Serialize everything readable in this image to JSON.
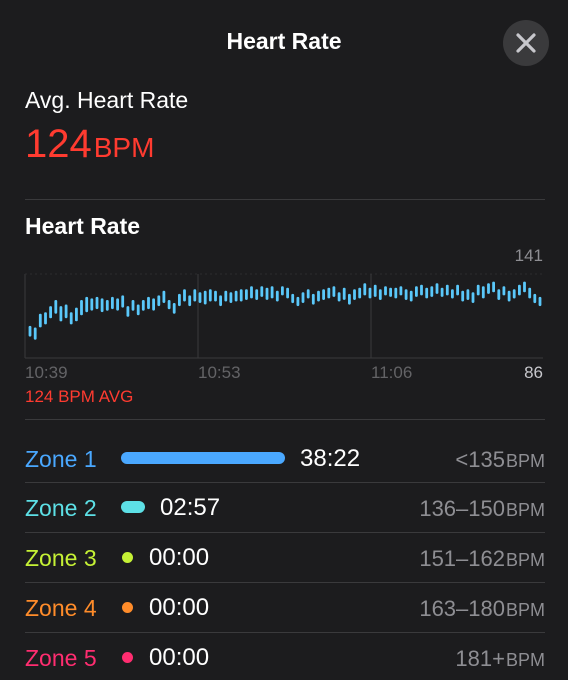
{
  "header": {
    "title": "Heart Rate"
  },
  "summary": {
    "avg_label": "Avg. Heart Rate",
    "avg_value": "124",
    "avg_unit": "BPM"
  },
  "chart_section": {
    "title": "Heart Rate",
    "avg_caption": "124 BPM AVG",
    "y_max_label": "141",
    "y_min_label": "86",
    "x_labels": [
      "10:39",
      "10:53",
      "11:06"
    ]
  },
  "chart_data": {
    "type": "bar",
    "title": "Heart Rate",
    "xlabel": "",
    "ylabel": "",
    "x_ticks": [
      "10:39",
      "10:53",
      "11:06"
    ],
    "ylim": [
      86,
      141
    ],
    "grid": true,
    "color": "#5ac8fa",
    "values": [
      [
        100,
        107
      ],
      [
        98,
        106
      ],
      [
        106,
        115
      ],
      [
        108,
        116
      ],
      [
        112,
        120
      ],
      [
        115,
        124
      ],
      [
        110,
        120
      ],
      [
        112,
        121
      ],
      [
        108,
        116
      ],
      [
        110,
        119
      ],
      [
        114,
        124
      ],
      [
        116,
        126
      ],
      [
        117,
        125
      ],
      [
        118,
        126
      ],
      [
        116,
        125
      ],
      [
        117,
        124
      ],
      [
        118,
        126
      ],
      [
        117,
        125
      ],
      [
        119,
        127
      ],
      [
        113,
        120
      ],
      [
        117,
        124
      ],
      [
        114,
        121
      ],
      [
        117,
        124
      ],
      [
        118,
        126
      ],
      [
        117,
        125
      ],
      [
        120,
        127
      ],
      [
        122,
        130
      ],
      [
        118,
        124
      ],
      [
        115,
        122
      ],
      [
        120,
        128
      ],
      [
        123,
        131
      ],
      [
        120,
        127
      ],
      [
        123,
        131
      ],
      [
        122,
        129
      ],
      [
        121,
        130
      ],
      [
        123,
        131
      ],
      [
        123,
        130
      ],
      [
        120,
        127
      ],
      [
        123,
        130
      ],
      [
        122,
        129
      ],
      [
        123,
        130
      ],
      [
        123,
        131
      ],
      [
        124,
        131
      ],
      [
        125,
        133
      ],
      [
        124,
        131
      ],
      [
        126,
        133
      ],
      [
        124,
        132
      ],
      [
        125,
        133
      ],
      [
        123,
        130
      ],
      [
        127,
        133
      ],
      [
        125,
        132
      ],
      [
        122,
        128
      ],
      [
        120,
        126
      ],
      [
        122,
        129
      ],
      [
        125,
        131
      ],
      [
        121,
        128
      ],
      [
        123,
        130
      ],
      [
        124,
        131
      ],
      [
        125,
        132
      ],
      [
        126,
        133
      ],
      [
        123,
        129
      ],
      [
        124,
        132
      ],
      [
        121,
        128
      ],
      [
        124,
        131
      ],
      [
        125,
        132
      ],
      [
        127,
        135
      ],
      [
        125,
        132
      ],
      [
        126,
        134
      ],
      [
        124,
        131
      ],
      [
        127,
        133
      ],
      [
        126,
        132
      ],
      [
        125,
        132
      ],
      [
        127,
        133
      ],
      [
        124,
        131
      ],
      [
        123,
        130
      ],
      [
        126,
        133
      ],
      [
        127,
        134
      ],
      [
        125,
        132
      ],
      [
        126,
        133
      ],
      [
        128,
        135
      ],
      [
        126,
        132
      ],
      [
        127,
        134
      ],
      [
        125,
        131
      ],
      [
        127,
        134
      ],
      [
        123,
        130
      ],
      [
        124,
        131
      ],
      [
        122,
        129
      ],
      [
        127,
        134
      ],
      [
        125,
        133
      ],
      [
        128,
        135
      ],
      [
        129,
        136
      ],
      [
        124,
        131
      ],
      [
        127,
        133
      ],
      [
        123,
        130
      ],
      [
        125,
        131
      ],
      [
        127,
        134
      ],
      [
        129,
        136
      ],
      [
        125,
        132
      ],
      [
        122,
        128
      ],
      [
        120,
        126
      ]
    ]
  },
  "zones": [
    {
      "name": "Zone 1",
      "time": "38:22",
      "range": "<135",
      "unit": "BPM",
      "color": "#4aa8ff",
      "fraction": 0.928,
      "marker": "bar"
    },
    {
      "name": "Zone 2",
      "time": "02:57",
      "range": "136–150",
      "unit": "BPM",
      "color": "#5de0e6",
      "fraction": 0.072,
      "marker": "bar"
    },
    {
      "name": "Zone 3",
      "time": "00:00",
      "range": "151–162",
      "unit": "BPM",
      "color": "#c5f135",
      "fraction": 0,
      "marker": "dot"
    },
    {
      "name": "Zone 4",
      "time": "00:00",
      "range": "163–180",
      "unit": "BPM",
      "color": "#ff8c2a",
      "fraction": 0,
      "marker": "dot"
    },
    {
      "name": "Zone 5",
      "time": "00:00",
      "range": "181+",
      "unit": "BPM",
      "color": "#ff2d70",
      "fraction": 0,
      "marker": "dot"
    }
  ]
}
